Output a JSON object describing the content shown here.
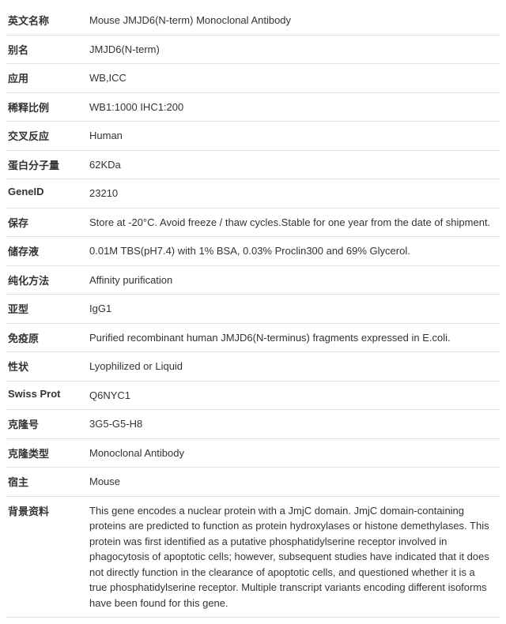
{
  "rows": [
    {
      "label": "英文名称",
      "value": "Mouse JMJD6(N-term) Monoclonal Antibody"
    },
    {
      "label": "别名",
      "value": "JMJD6(N-term)"
    },
    {
      "label": "应用",
      "value": "WB,ICC"
    },
    {
      "label": "稀释比例",
      "value": "WB1:1000 IHC1:200"
    },
    {
      "label": "交叉反应",
      "value": "Human"
    },
    {
      "label": "蛋白分子量",
      "value": "62KDa"
    },
    {
      "label": "GeneID",
      "value": "23210"
    },
    {
      "label": "保存",
      "value": "Store at -20°C. Avoid freeze / thaw cycles.Stable for one year from the date of shipment."
    },
    {
      "label": "储存液",
      "value": "0.01M TBS(pH7.4) with 1% BSA, 0.03% Proclin300 and 69% Glycerol."
    },
    {
      "label": "纯化方法",
      "value": "Affinity purification"
    },
    {
      "label": "亚型",
      "value": "IgG1"
    },
    {
      "label": "免疫原",
      "value": "Purified recombinant human JMJD6(N-terminus) fragments expressed in E.coli."
    },
    {
      "label": "性状",
      "value": "Lyophilized or Liquid"
    },
    {
      "label": "Swiss Prot",
      "value": "Q6NYC1"
    },
    {
      "label": "克隆号",
      "value": "3G5-G5-H8"
    },
    {
      "label": "克隆类型",
      "value": "Monoclonal Antibody"
    },
    {
      "label": "宿主",
      "value": "Mouse"
    },
    {
      "label": "背景资料",
      "value": "This gene encodes a nuclear protein with a JmjC domain. JmjC domain-containing proteins are predicted to function as protein hydroxylases or histone demethylases. This protein was first identified as a putative phosphatidylserine receptor involved in phagocytosis of apoptotic cells; however, subsequent studies have indicated that it does not directly function in the clearance of apoptotic cells, and questioned whether it is a true phosphatidylserine receptor. Multiple transcript variants encoding different isoforms have been found for this gene."
    }
  ]
}
